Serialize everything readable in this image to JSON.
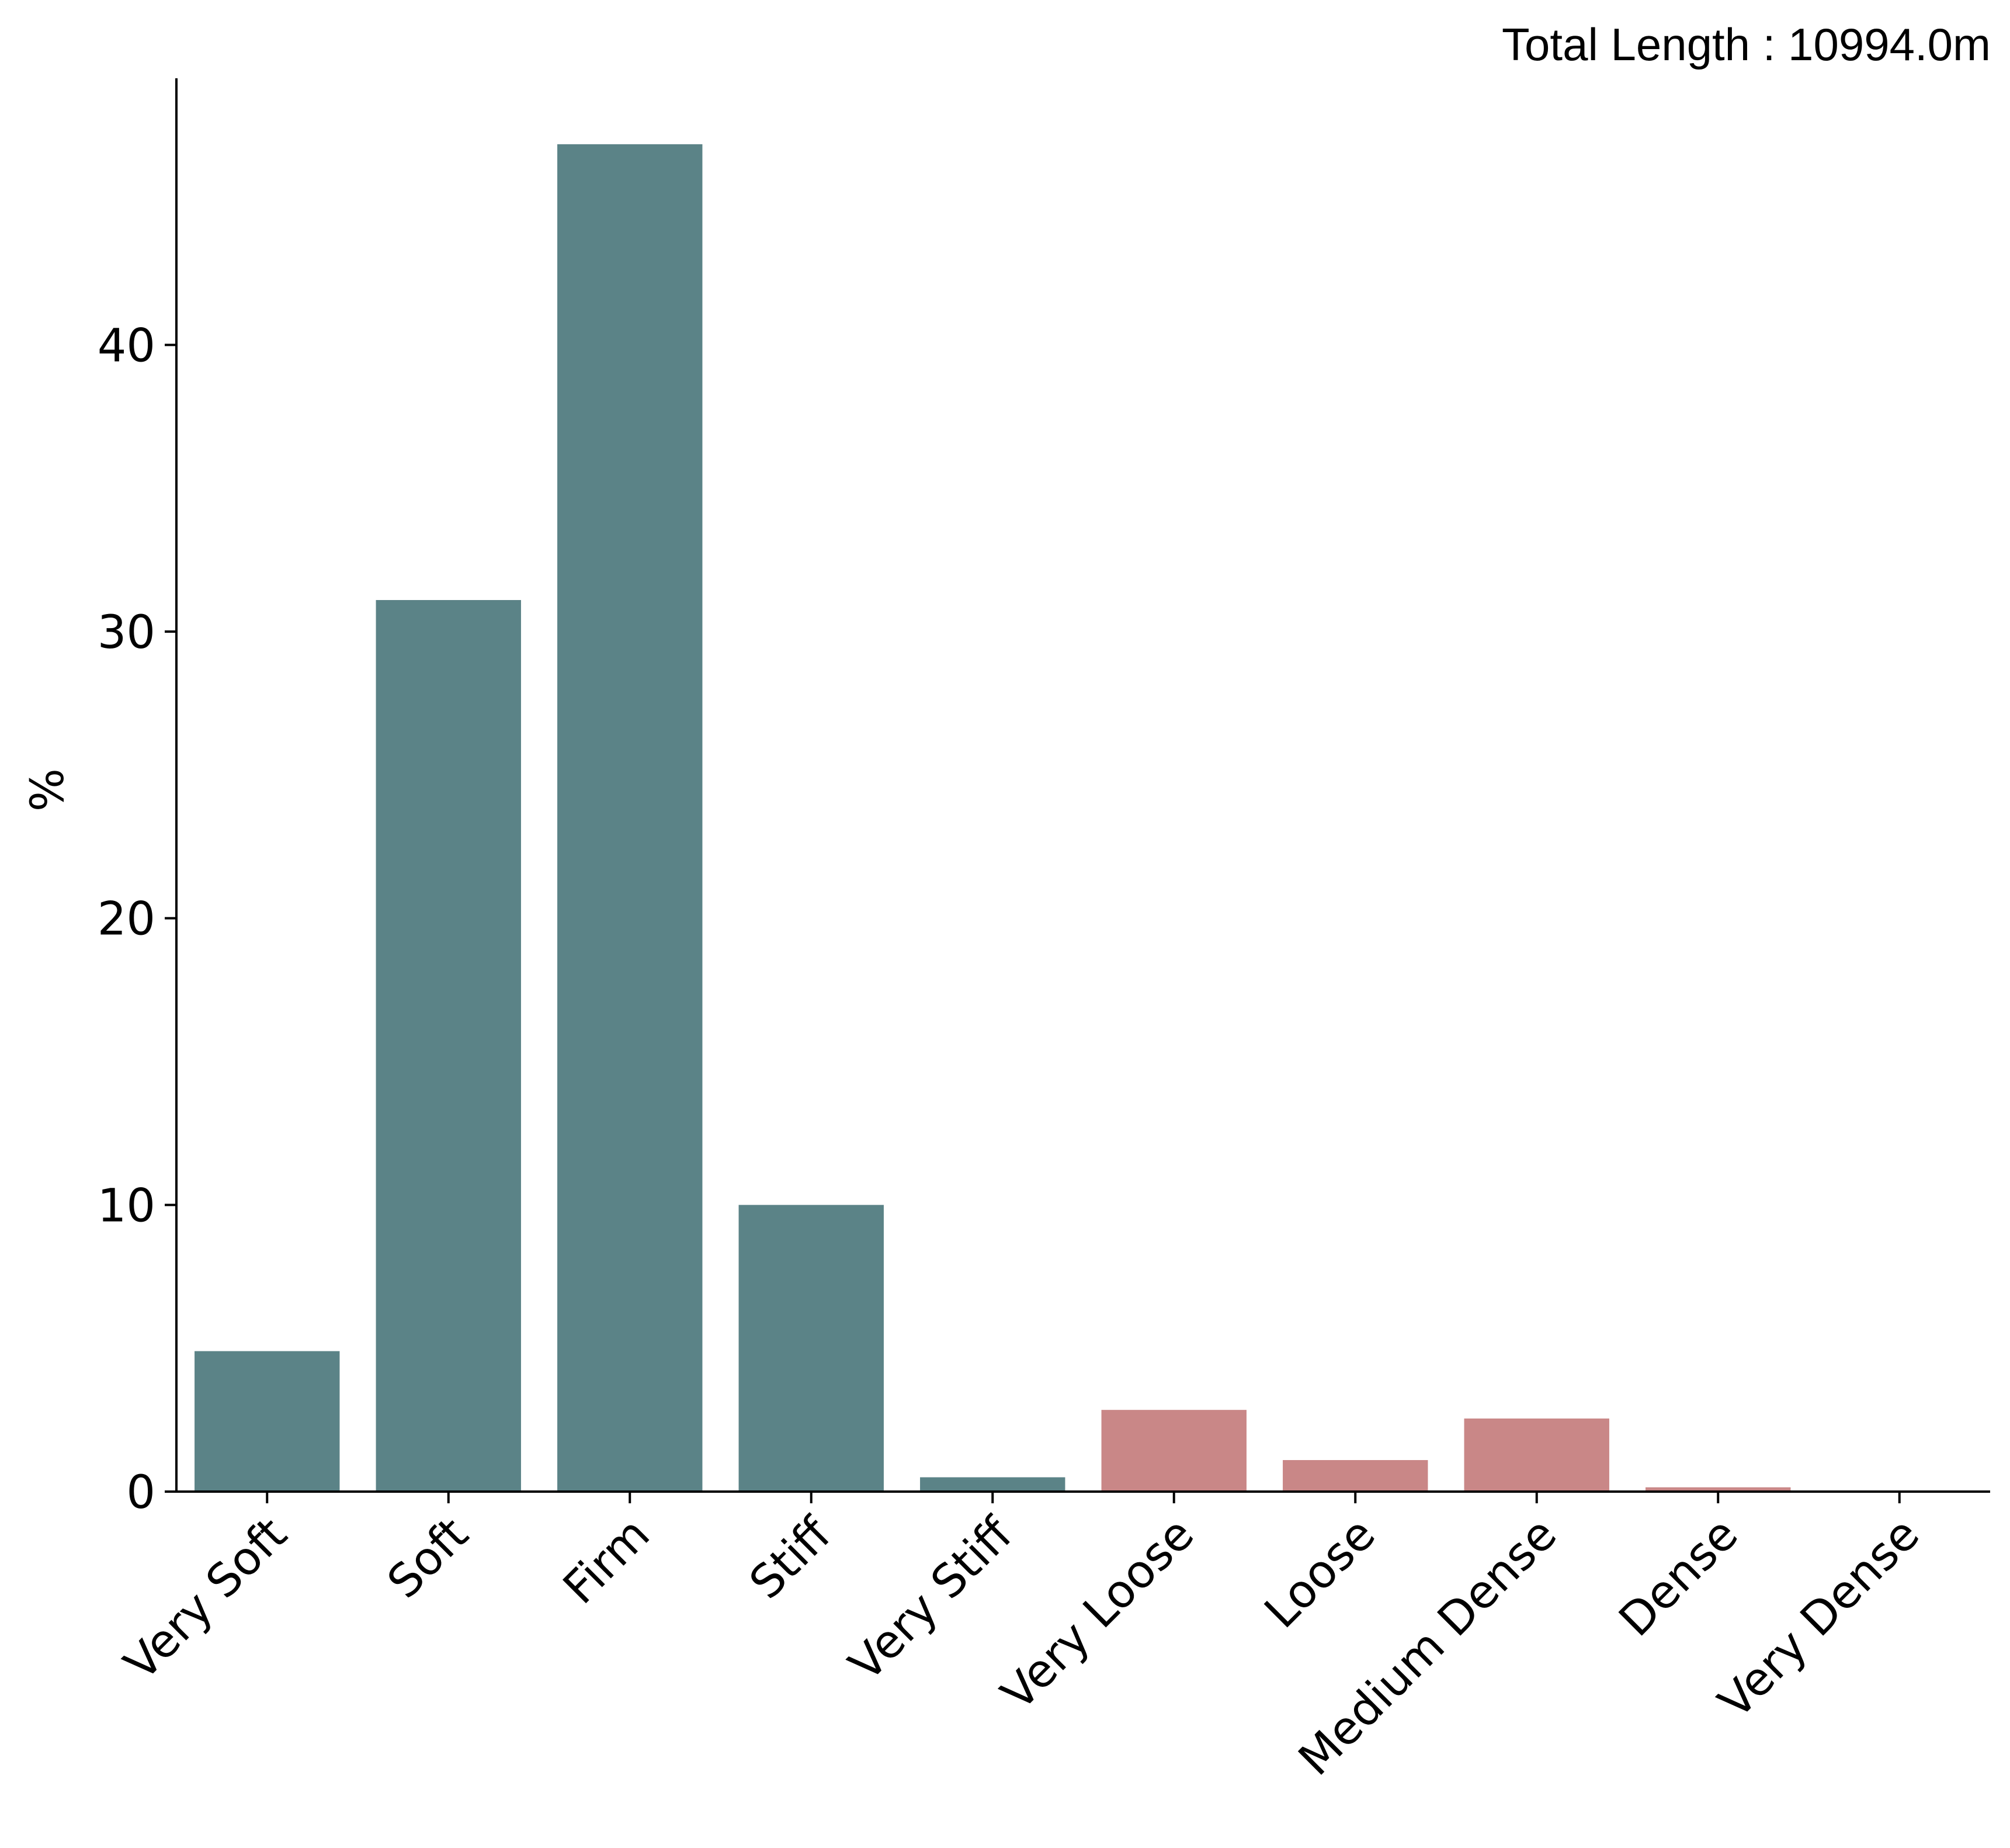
{
  "chart_data": {
    "type": "bar",
    "title": "",
    "annotation": "Total Length : 10994.0m",
    "xlabel": "",
    "ylabel": "%",
    "categories": [
      "Very Soft",
      "Soft",
      "Firm",
      "Stiff",
      "Very Stiff",
      "Very Loose",
      "Loose",
      "Medium Dense",
      "Dense",
      "Very Dense"
    ],
    "values": [
      4.9,
      31.1,
      47.0,
      10.0,
      0.5,
      2.85,
      1.1,
      2.55,
      0.15,
      0.0
    ],
    "bar_colors": [
      "#5b8387",
      "#5b8387",
      "#5b8387",
      "#5b8387",
      "#5b8387",
      "#c98787",
      "#c98787",
      "#c98787",
      "#c98787",
      "#c98787"
    ],
    "yticks": [
      0,
      10,
      20,
      30,
      40
    ],
    "ylim": [
      0,
      49.3
    ],
    "grid": false,
    "legend": "none"
  }
}
